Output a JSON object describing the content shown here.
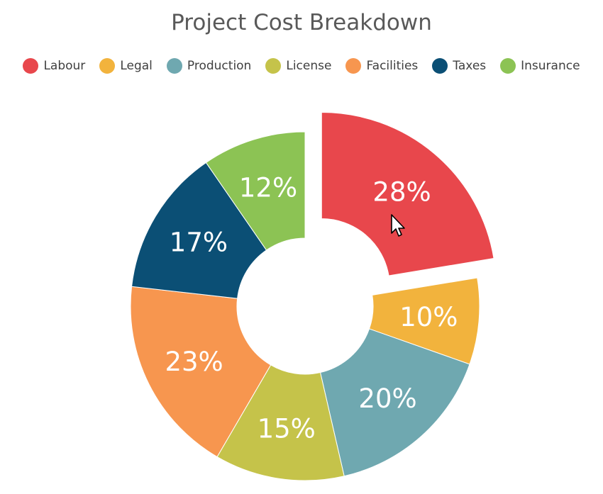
{
  "chart_data": {
    "type": "pie",
    "variant": "doughnut",
    "title": "Project Cost Breakdown",
    "legend_position": "top",
    "categories": [
      "Labour",
      "Legal",
      "Production",
      "License",
      "Facilities",
      "Taxes",
      "Insurance"
    ],
    "values": [
      28,
      10,
      20,
      15,
      23,
      17,
      12
    ],
    "labels": [
      "28%",
      "10%",
      "20%",
      "15%",
      "23%",
      "17%",
      "12%"
    ],
    "colors": [
      "#e8474c",
      "#f2b33d",
      "#6fa8b0",
      "#c5c34a",
      "#f7964f",
      "#0b4f75",
      "#8cc354"
    ],
    "exploded": "Labour"
  }
}
